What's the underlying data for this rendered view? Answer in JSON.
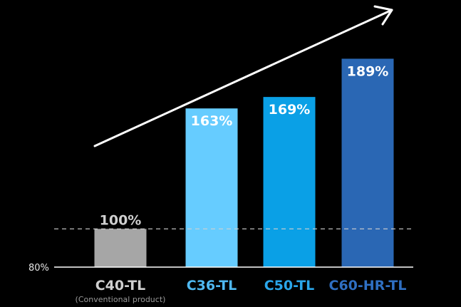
{
  "chart_data": {
    "type": "bar",
    "categories": [
      "C40-TL",
      "C36-TL",
      "C50-TL",
      "C60-HR-TL"
    ],
    "category_sublabels": [
      "(Conventional product)",
      "",
      "",
      ""
    ],
    "values": [
      100,
      163,
      169,
      189
    ],
    "value_labels": [
      "100%",
      "163%",
      "169%",
      "189%"
    ],
    "bar_colors": [
      "#a6a6a6",
      "#66ccff",
      "#0aa0e6",
      "#2a67b4"
    ],
    "label_colors": [
      "#cfcfcf",
      "#4fb8f0",
      "#2aa6ea",
      "#2f6fc2"
    ],
    "data_label_colors": [
      "#cfcfcf",
      "#ffffff",
      "#ffffff",
      "#ffffff"
    ],
    "baseline_tick_label": "80%",
    "reference_line_value": 100,
    "ylim": [
      80,
      189
    ],
    "title": "",
    "xlabel": "",
    "ylabel": "",
    "grid": false,
    "annotations": [
      "upward-trend-arrow"
    ]
  }
}
